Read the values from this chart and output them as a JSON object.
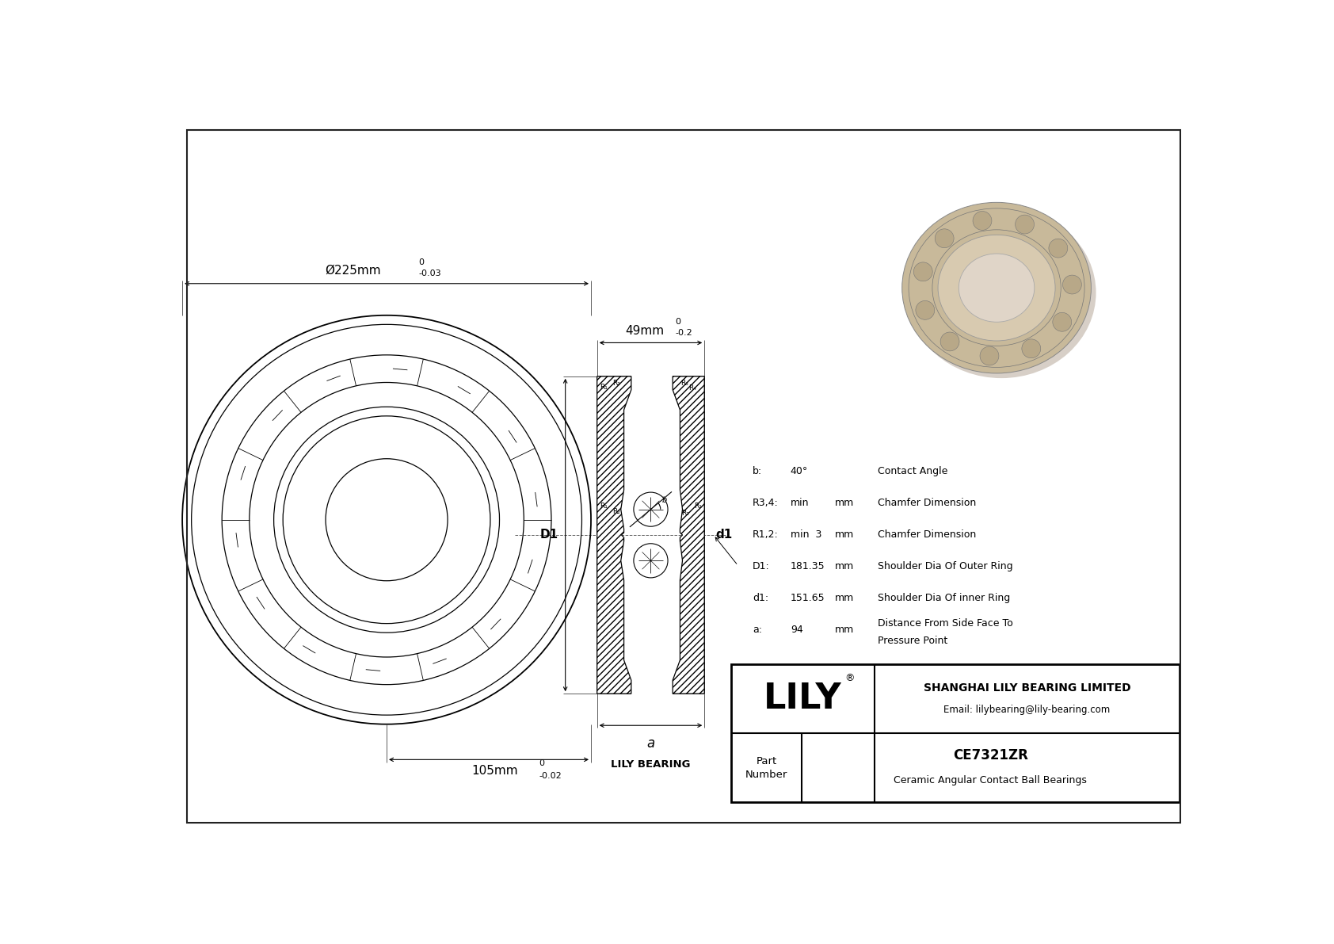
{
  "bg_color": "#ffffff",
  "line_color": "#000000",
  "dim_line_color": "#333333",
  "title_box": {
    "lily_text": "LILY",
    "company": "SHANGHAI LILY BEARING LIMITED",
    "email": "Email: lilybearing@lily-bearing.com",
    "part_label": "Part\nNumber",
    "part_number": "CE7321ZR",
    "part_desc": "Ceramic Angular Contact Ball Bearings"
  },
  "specs": [
    {
      "label": "b:",
      "value": "40°",
      "unit": "",
      "desc": "Contact Angle"
    },
    {
      "label": "R3,4:",
      "value": "min",
      "unit": "mm",
      "desc": "Chamfer Dimension"
    },
    {
      "label": "R1,2:",
      "value": "min  3",
      "unit": "mm",
      "desc": "Chamfer Dimension"
    },
    {
      "label": "D1:",
      "value": "181.35",
      "unit": "mm",
      "desc": "Shoulder Dia Of Outer Ring"
    },
    {
      "label": "d1:",
      "value": "151.65",
      "unit": "mm",
      "desc": "Shoulder Dia Of inner Ring"
    },
    {
      "label": "a:",
      "value": "94",
      "unit": "mm",
      "desc": "Distance From Side Face To\nPressure Point"
    }
  ],
  "dim_outer_text": "Ø225mm",
  "dim_outer_tol_hi": "0",
  "dim_outer_tol_lo": "-0.03",
  "dim_width_text": "49mm",
  "dim_width_tol_hi": "0",
  "dim_width_tol_lo": "-0.2",
  "dim_inner_text": "105mm",
  "dim_inner_tol_hi": "0",
  "dim_inner_tol_lo": "-0.02",
  "label_a": "a",
  "label_D1": "D1",
  "label_d1": "d1",
  "lily_bearing_label": "LILY BEARING",
  "bearing_3d_color_outer": "#c8b99a",
  "bearing_3d_color_inner": "#d8cab0",
  "bearing_3d_color_bore": "#e8ddd0",
  "bearing_3d_ball_color": "#b8a888"
}
